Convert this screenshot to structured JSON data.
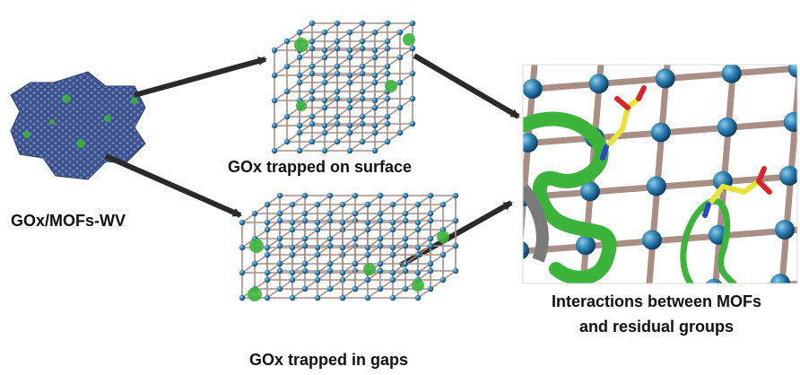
{
  "labels": {
    "source": "GOx/MOFs-WV",
    "surface": "GOx trapped on surface",
    "gaps": "GOx trapped in gaps",
    "interactions_line1": "Interactions between MOFs",
    "interactions_line2": "and residual groups"
  },
  "colors": {
    "frame_rod": "#a98e86",
    "node_sphere": "#2f86b8",
    "enzyme_green": "#3cb43c",
    "residue_yellow": "#e8e23a",
    "arrow": "#2a2a2a",
    "sheet": "#3b4f8a"
  }
}
